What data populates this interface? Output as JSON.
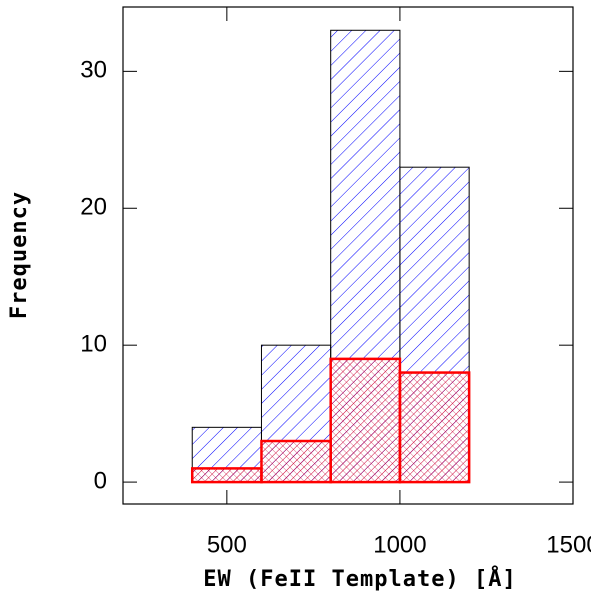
{
  "chart_data": {
    "type": "histogram",
    "xlabel": "EW (FeII Template)  [Å]",
    "ylabel": "Frequency",
    "xlim": [
      200,
      1500
    ],
    "ylim": [
      -1.6,
      34.7
    ],
    "xticks": [
      500,
      1000,
      1500
    ],
    "yticks": [
      0,
      10,
      20,
      30
    ],
    "series": [
      {
        "color": "#0000ff",
        "bins": [
          400,
          600,
          800,
          1000,
          1200
        ],
        "values": [
          4,
          10,
          33,
          23
        ]
      },
      {
        "color": "#ff0000",
        "bins": [
          200,
          400,
          600,
          800,
          1000,
          1200,
          1500
        ],
        "values": [
          0,
          1,
          3,
          9,
          8,
          0
        ]
      }
    ]
  }
}
